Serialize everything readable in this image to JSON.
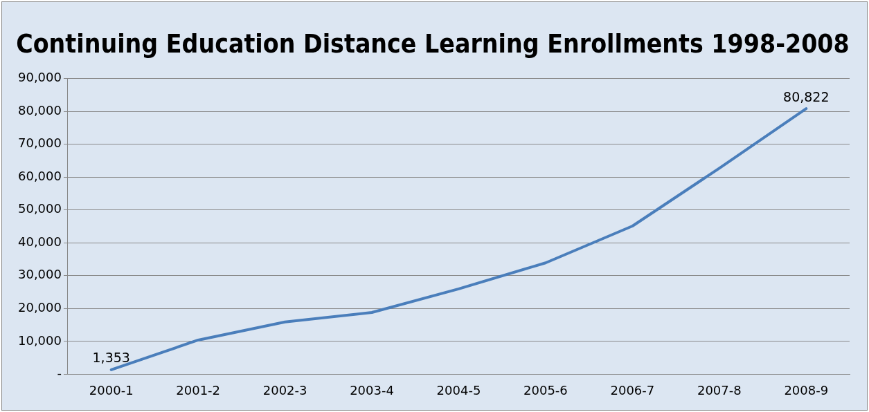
{
  "chart_data": {
    "type": "line",
    "title": "Continuing Education Distance Learning Enrollments 1998-2008",
    "categories": [
      "2000-1",
      "2001-2",
      "2002-3",
      "2003-4",
      "2004-5",
      "2005-6",
      "2006-7",
      "2007-8",
      "2008-9"
    ],
    "series": [
      {
        "color": "#4a7ebb",
        "values": [
          1353,
          10400,
          15900,
          18800,
          26000,
          33900,
          45100,
          62700,
          80822
        ],
        "value_labels": [
          "1,353",
          null,
          null,
          null,
          null,
          null,
          null,
          null,
          "80,822"
        ]
      }
    ],
    "ylim": [
      0,
      90000
    ],
    "yticks": [
      {
        "value": 0,
        "label": "-"
      },
      {
        "value": 10000,
        "label": "10,000"
      },
      {
        "value": 20000,
        "label": "20,000"
      },
      {
        "value": 30000,
        "label": "30,000"
      },
      {
        "value": 40000,
        "label": "40,000"
      },
      {
        "value": 50000,
        "label": "50,000"
      },
      {
        "value": 60000,
        "label": "60,000"
      },
      {
        "value": 70000,
        "label": "70,000"
      },
      {
        "value": 80000,
        "label": "80,000"
      },
      {
        "value": 90000,
        "label": "90,000"
      }
    ],
    "grid": "y",
    "legend": false,
    "marker": "none",
    "line_style": "solid"
  }
}
